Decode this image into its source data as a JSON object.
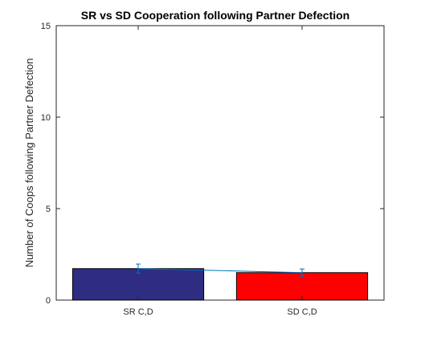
{
  "chart_data": {
    "type": "bar",
    "title": "SR vs SD Cooperation following Partner Defection",
    "xlabel": "",
    "ylabel": "Number of Coops following Partner Defection",
    "categories": [
      "SR C,D",
      "SD C,D"
    ],
    "values": [
      1.72,
      1.5
    ],
    "errors": [
      0.25,
      0.2
    ],
    "bar_colors": [
      "#2e2d82",
      "#ff0000"
    ],
    "errorbar_color": "#0072bd",
    "ylim": [
      0,
      15
    ],
    "yticks": [
      0,
      5,
      10,
      15
    ],
    "grid": false,
    "legend": "none"
  }
}
